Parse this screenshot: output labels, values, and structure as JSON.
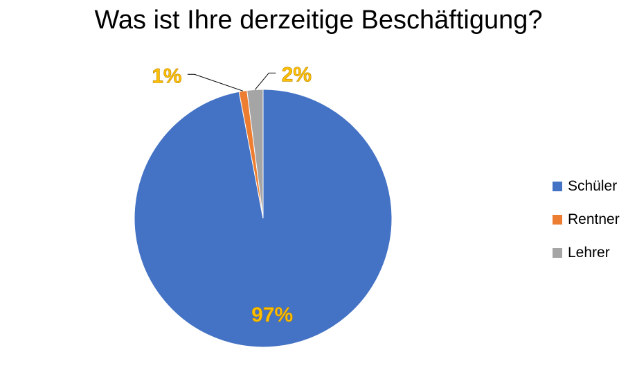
{
  "chart_data": {
    "type": "pie",
    "title": "Was ist Ihre derzeitige Beschäftigung?",
    "categories": [
      "Schüler",
      "Rentner",
      "Lehrer"
    ],
    "values": [
      97,
      1,
      2
    ],
    "data_labels": [
      "97%",
      "1%",
      "2%"
    ],
    "colors": [
      "#4472C4",
      "#ED7D31",
      "#A5A5A5"
    ],
    "label_color": "#FFC000",
    "legend_position": "right"
  }
}
